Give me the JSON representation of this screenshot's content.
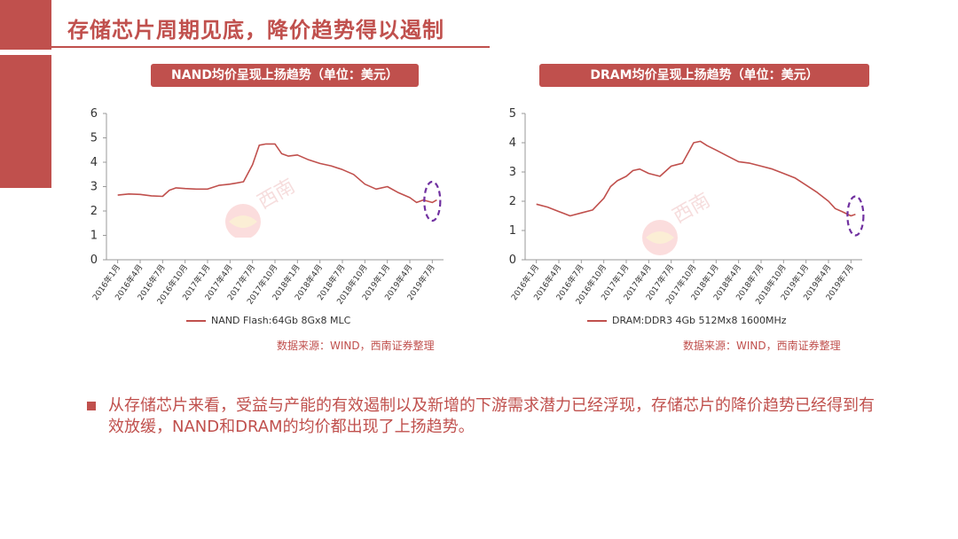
{
  "slide": {
    "title": "存储芯片周期见底，降价趋势得以遏制",
    "bullet": "从存储芯片来看，受益与产能的有效遏制以及新增的下游需求潜力已经浮现，存储芯片的降价趋势已经得到有效放缓，NAND和DRAM的均价都出现了上扬趋势。"
  },
  "colors": {
    "accent": "#c0504d",
    "highlight_ellipse": "#7030a0"
  },
  "chart_data": [
    {
      "type": "line",
      "title": "NAND均价呈现上扬趋势（单位：美元）",
      "x_ticks": [
        "2016年1月",
        "2016年4月",
        "2016年7月",
        "2016年10月",
        "2017年1月",
        "2017年4月",
        "2017年7月",
        "2017年10月",
        "2018年1月",
        "2018年4月",
        "2018年7月",
        "2018年10月",
        "2019年1月",
        "2019年4月",
        "2019年7月"
      ],
      "ylim": [
        0,
        6
      ],
      "y_ticks": [
        "0",
        "1",
        "2",
        "3",
        "4",
        "5",
        "6"
      ],
      "series": [
        {
          "name": "NAND Flash:64Gb 8Gx8 MLC",
          "x": [
            0,
            0.5,
            1,
            1.5,
            2,
            2.3,
            2.6,
            3,
            3.5,
            4,
            4.5,
            5,
            5.3,
            5.6,
            6,
            6.3,
            6.6,
            7,
            7.3,
            7.6,
            8,
            8.5,
            9,
            9.5,
            10,
            10.5,
            11,
            11.5,
            12,
            12.5,
            13,
            13.3,
            13.6,
            14,
            14.2
          ],
          "y": [
            2.65,
            2.7,
            2.68,
            2.62,
            2.6,
            2.85,
            2.95,
            2.92,
            2.9,
            2.9,
            3.05,
            3.1,
            3.15,
            3.2,
            3.9,
            4.7,
            4.75,
            4.75,
            4.35,
            4.25,
            4.3,
            4.1,
            3.95,
            3.85,
            3.7,
            3.5,
            3.1,
            2.9,
            3.0,
            2.75,
            2.55,
            2.35,
            2.45,
            2.35,
            2.45
          ]
        }
      ],
      "legend": "NAND Flash:64Gb 8Gx8 MLC",
      "source": "数据来源：WIND，西南证券整理",
      "highlight": {
        "x": 14,
        "y": 2.4,
        "note": "dashed ellipse"
      }
    },
    {
      "type": "line",
      "title": "DRAM均价呈现上扬趋势（单位：美元）",
      "x_ticks": [
        "2016年1月",
        "2016年4月",
        "2016年7月",
        "2016年10月",
        "2017年1月",
        "2017年4月",
        "2017年7月",
        "2017年10月",
        "2018年1月",
        "2018年4月",
        "2018年7月",
        "2018年10月",
        "2019年1月",
        "2019年4月",
        "2019年7月"
      ],
      "ylim": [
        0,
        5
      ],
      "y_ticks": [
        "0",
        "1",
        "2",
        "3",
        "4",
        "5"
      ],
      "series": [
        {
          "name": "DRAM:DDR3 4Gb 512Mx8 1600MHz",
          "x": [
            0,
            0.5,
            1,
            1.5,
            2,
            2.5,
            3,
            3.3,
            3.6,
            4,
            4.3,
            4.6,
            5,
            5.5,
            6,
            6.5,
            7,
            7.3,
            7.6,
            8,
            8.5,
            9,
            9.5,
            10,
            10.5,
            11,
            11.5,
            12,
            12.5,
            13,
            13.3,
            13.6,
            14,
            14.2
          ],
          "y": [
            1.9,
            1.8,
            1.65,
            1.5,
            1.6,
            1.7,
            2.1,
            2.5,
            2.7,
            2.85,
            3.05,
            3.1,
            2.95,
            2.85,
            3.2,
            3.3,
            4.0,
            4.05,
            3.9,
            3.75,
            3.55,
            3.35,
            3.3,
            3.2,
            3.1,
            2.95,
            2.8,
            2.55,
            2.3,
            2.0,
            1.75,
            1.65,
            1.5,
            1.55
          ]
        }
      ],
      "legend": "DRAM:DDR3 4Gb 512Mx8 1600MHz",
      "source": "数据来源：WIND，西南证券整理",
      "highlight": {
        "x": 14.2,
        "y": 1.5,
        "note": "dashed ellipse"
      }
    }
  ]
}
